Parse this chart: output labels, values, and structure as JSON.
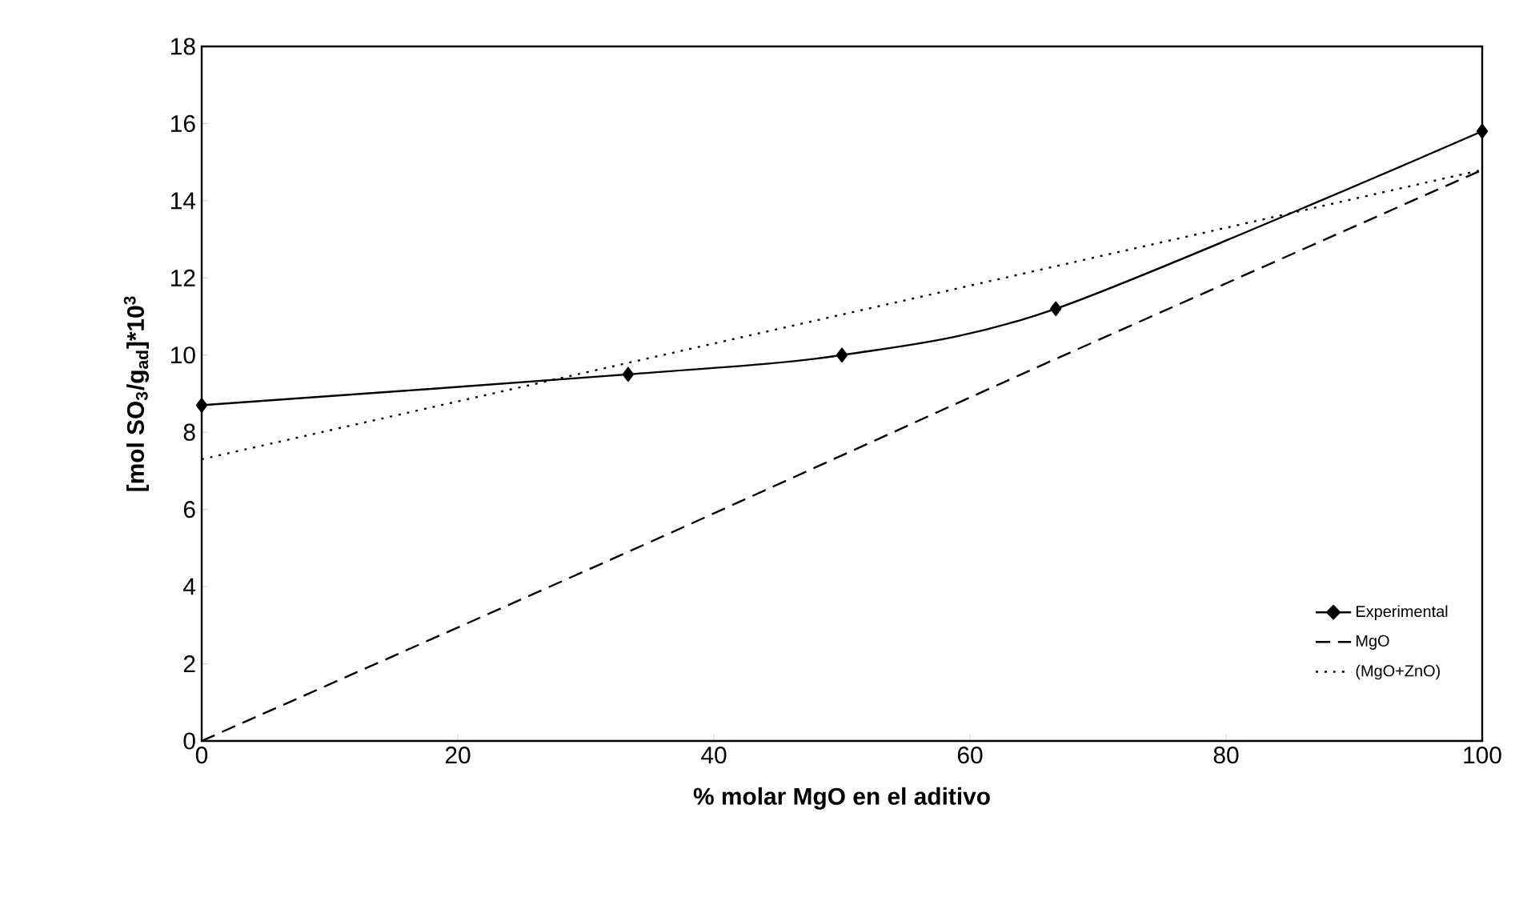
{
  "chart_data": {
    "type": "line",
    "xlabel": "%  molar MgO en el aditivo",
    "ylabel": "[mol SO$_{3}$/g$_{ad}$]*10$^{3}$",
    "xlim": [
      0,
      100
    ],
    "xticks": [
      0,
      20,
      40,
      60,
      80,
      100
    ],
    "ylim": [
      0,
      18
    ],
    "yticks": [
      0,
      2,
      4,
      6,
      8,
      10,
      12,
      14,
      16,
      18
    ],
    "grid": false,
    "legend": "bottom right",
    "series": [
      {
        "name": "Experimental",
        "color": "#000000",
        "marker": "diamond",
        "line_style": "solid",
        "x": [
          0,
          33.3,
          50,
          66.7,
          100
        ],
        "values": [
          8.7,
          9.5,
          10.0,
          11.2,
          15.8
        ]
      },
      {
        "name": "MgO",
        "color": "#000000",
        "marker": "none",
        "line_style": "dashed",
        "x": [
          0,
          33.3,
          50,
          66.7,
          100
        ],
        "values": [
          0,
          4.9,
          7.4,
          9.9,
          14.8
        ]
      },
      {
        "name": "(MgO+ZnO)",
        "color": "#000000",
        "marker": "none",
        "line_style": "dotted",
        "x": [
          0,
          100
        ],
        "values": [
          7.3,
          14.8
        ]
      }
    ]
  }
}
